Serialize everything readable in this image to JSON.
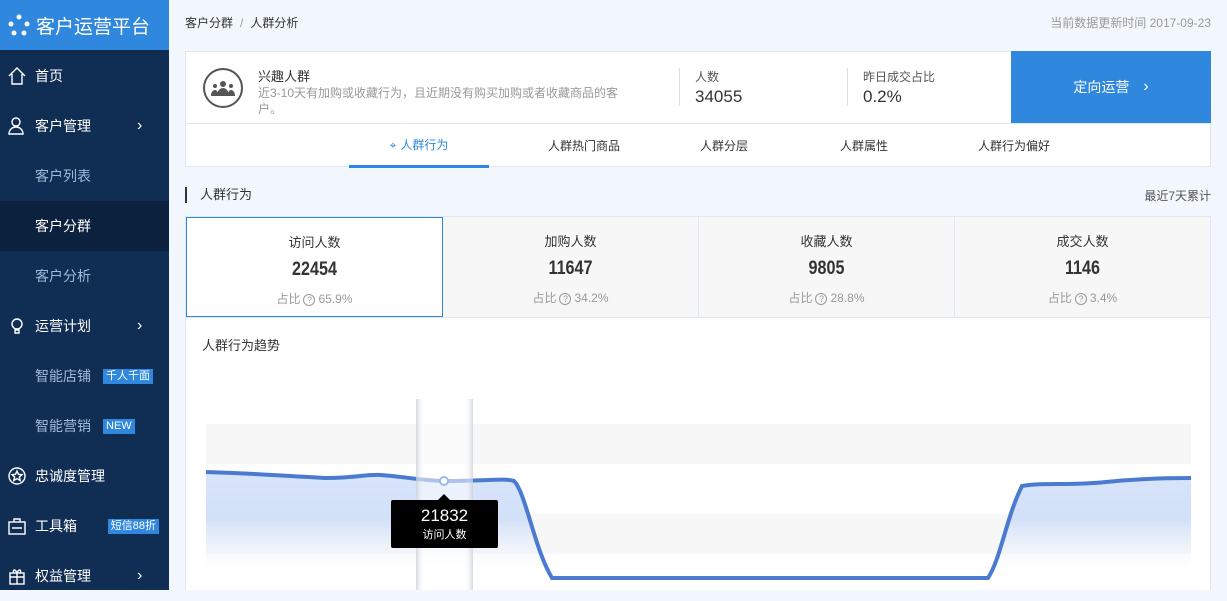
{
  "app": {
    "title": "客户运营平台"
  },
  "sidebar": {
    "items": [
      {
        "label": "首页",
        "icon": "home-icon"
      },
      {
        "label": "客户管理",
        "icon": "user-icon"
      },
      {
        "label": "客户列表"
      },
      {
        "label": "客户分群",
        "active": true
      },
      {
        "label": "客户分析"
      },
      {
        "label": "运营计划",
        "icon": "bulb-icon"
      },
      {
        "label": "智能店铺",
        "badge": "千人千面"
      },
      {
        "label": "智能营销",
        "badge": "NEW"
      },
      {
        "label": "忠诚度管理",
        "icon": "star-icon"
      },
      {
        "label": "工具箱",
        "icon": "toolbox-icon",
        "badge": "短信88折"
      },
      {
        "label": "权益管理",
        "icon": "gift-icon"
      }
    ]
  },
  "breadcrumb": [
    "客户分群",
    "/",
    "人群分析"
  ],
  "update_time": "当前数据更新时间 2017-09-23",
  "group": {
    "title": "兴趣人群",
    "desc": "近3-10天有加购或收藏行为，且近期没有购买加购或者收藏商品的客户。",
    "count_label": "人数",
    "count": "34055",
    "rate_label": "昨日成交占比",
    "rate": "0.2%",
    "action": "定向运营"
  },
  "tabs": [
    "人群行为",
    "人群热门商品",
    "人群分层",
    "人群属性",
    "人群行为偏好"
  ],
  "section": {
    "title": "人群行为",
    "range": "最近7天累计"
  },
  "metrics": [
    {
      "label": "访问人数",
      "value": "22454",
      "ratio_label": "占比",
      "ratio": "65.9%"
    },
    {
      "label": "加购人数",
      "value": "11647",
      "ratio_label": "占比",
      "ratio": "34.2%"
    },
    {
      "label": "收藏人数",
      "value": "9805",
      "ratio_label": "占比",
      "ratio": "28.8%"
    },
    {
      "label": "成交人数",
      "value": "1146",
      "ratio_label": "占比",
      "ratio": "3.4%"
    }
  ],
  "trend": {
    "title": "人群行为趋势",
    "tooltip": {
      "value": "21832",
      "label": "访问人数"
    }
  },
  "colors": {
    "brand": "#2f88dd",
    "sidebar": "#102e54",
    "line": "#4a7bd0"
  }
}
